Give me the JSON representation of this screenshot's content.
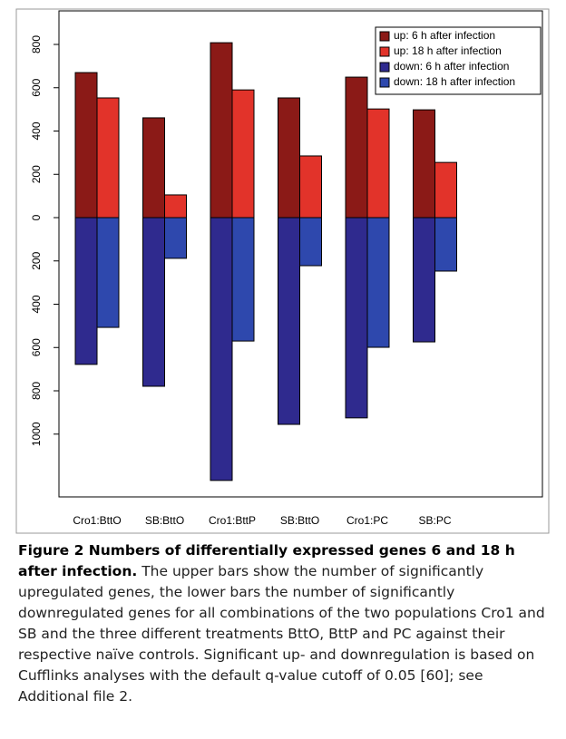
{
  "chart_data": {
    "type": "bar",
    "categories": [
      "Cro1:BttO",
      "SB:BttO",
      "Cro1:BttP",
      "SB:BttO",
      "Cro1:PC",
      "SB:PC"
    ],
    "series": [
      {
        "name": "up: 6 h after infection",
        "color": "#8b1a17",
        "values": [
          670,
          461,
          808,
          553,
          649,
          498
        ]
      },
      {
        "name": "up: 18 h after infection",
        "color": "#e2332a",
        "values": [
          553,
          105,
          590,
          285,
          502,
          255
        ]
      },
      {
        "name": "down: 6 h after infection",
        "color": "#2f2a8e",
        "values": [
          -678,
          -779,
          -1214,
          -955,
          -925,
          -574
        ]
      },
      {
        "name": "down: 18 h after infection",
        "color": "#2e48ad",
        "values": [
          -507,
          -188,
          -570,
          -222,
          -599,
          -247
        ]
      }
    ],
    "ylim": [
      -1290,
      955
    ],
    "yticks": [
      {
        "value": -1000,
        "label": "1000"
      },
      {
        "value": -800,
        "label": "800"
      },
      {
        "value": -600,
        "label": "600"
      },
      {
        "value": -400,
        "label": "400"
      },
      {
        "value": -200,
        "label": "200"
      },
      0,
      200,
      400,
      600,
      800
    ],
    "legend": "top-right"
  },
  "caption": {
    "title": "Figure 2 Numbers of differentially expressed genes 6 and 18 h after infection.",
    "text": "The upper bars show the number of significantly upregulated genes, the lower bars the number of significantly downregulated genes for all combinations of the two populations Cro1 and SB and the three different treatments BttO, BttP and PC against their respective naïve controls. Significant up- and downregulation is based on Cufflinks analyses with the default q-value cutoff of 0.05 [60]; see Additional file 2."
  }
}
